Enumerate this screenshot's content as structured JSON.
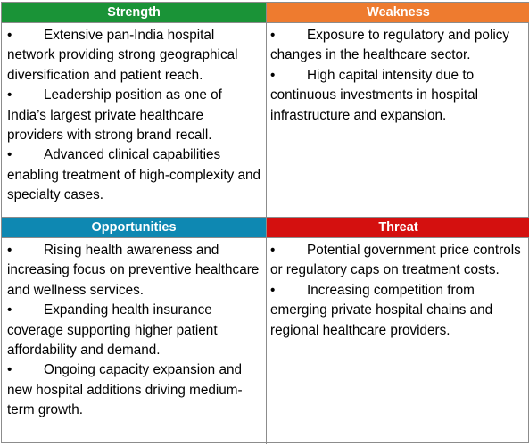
{
  "colors": {
    "strength": "#1a9337",
    "weakness": "#ee7b2f",
    "opportunities": "#0e88b2",
    "threat": "#d4100f"
  },
  "bullet_glyph": "•",
  "quadrants": {
    "strength": {
      "title": "Strength",
      "items": [
        "Extensive pan-India hospital network providing strong geographical diversification and patient reach.",
        "Leadership position as one of India’s largest private healthcare providers with strong brand recall.",
        "Advanced clinical capabilities enabling treatment of high-complexity and specialty cases."
      ]
    },
    "weakness": {
      "title": "Weakness",
      "items": [
        "Exposure to regulatory and policy changes in the healthcare sector.",
        "High capital intensity due to continuous investments in hospital infrastructure and expansion."
      ]
    },
    "opportunities": {
      "title": "Opportunities",
      "items": [
        "Rising health awareness and increasing focus on preventive healthcare and wellness services.",
        "Expanding health insurance coverage supporting higher patient affordability and demand.",
        "Ongoing capacity expansion and new hospital additions driving medium-term growth."
      ]
    },
    "threat": {
      "title": "Threat",
      "items": [
        "Potential government price controls or regulatory caps on treatment costs.",
        "Increasing competition from emerging private hospital chains and regional healthcare providers."
      ]
    }
  }
}
